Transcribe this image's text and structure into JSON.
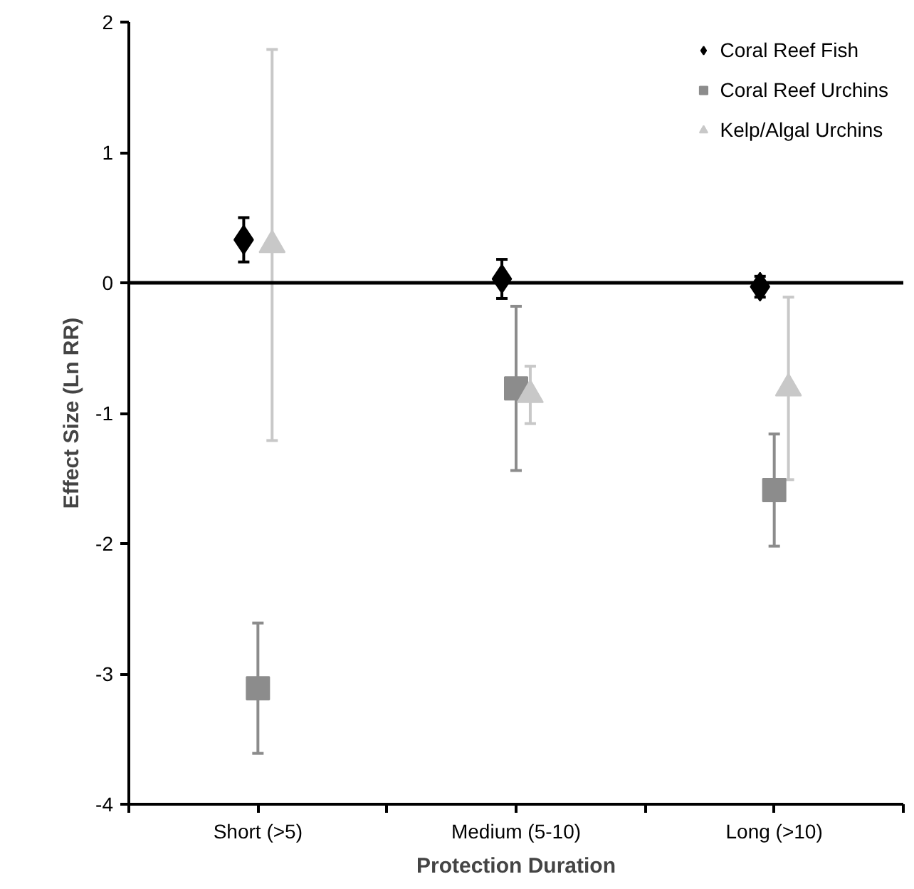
{
  "chart_data": {
    "type": "scatter",
    "xlabel": "Protection Duration",
    "ylabel": "Effect Size (Ln RR)",
    "categories": [
      "Short (>5)",
      "Medium (5-10)",
      "Long (>10)"
    ],
    "ylim": [
      -4,
      2
    ],
    "yticks": [
      -4,
      -3,
      -2,
      -1,
      0,
      1,
      2
    ],
    "series": [
      {
        "name": "Coral Reef Fish",
        "color": "#000000",
        "marker": "diamond",
        "values": [
          0.33,
          0.03,
          -0.03
        ],
        "errors": [
          0.17,
          0.15,
          0.08
        ]
      },
      {
        "name": "Coral Reef Urchins",
        "color": "#8c8c8c",
        "marker": "square",
        "values": [
          -3.11,
          -0.81,
          -1.59
        ],
        "errors": [
          0.5,
          0.63,
          0.43
        ]
      },
      {
        "name": "Kelp/Algal Urchins",
        "color": "#c8c8c8",
        "marker": "triangle",
        "values": [
          0.29,
          -0.86,
          -0.81
        ],
        "errors": [
          1.5,
          0.22,
          0.7
        ]
      }
    ],
    "ref_lines": [
      {
        "axis": "y",
        "value": 0,
        "color": "#000000"
      }
    ],
    "legend": "top right",
    "grid": false
  }
}
